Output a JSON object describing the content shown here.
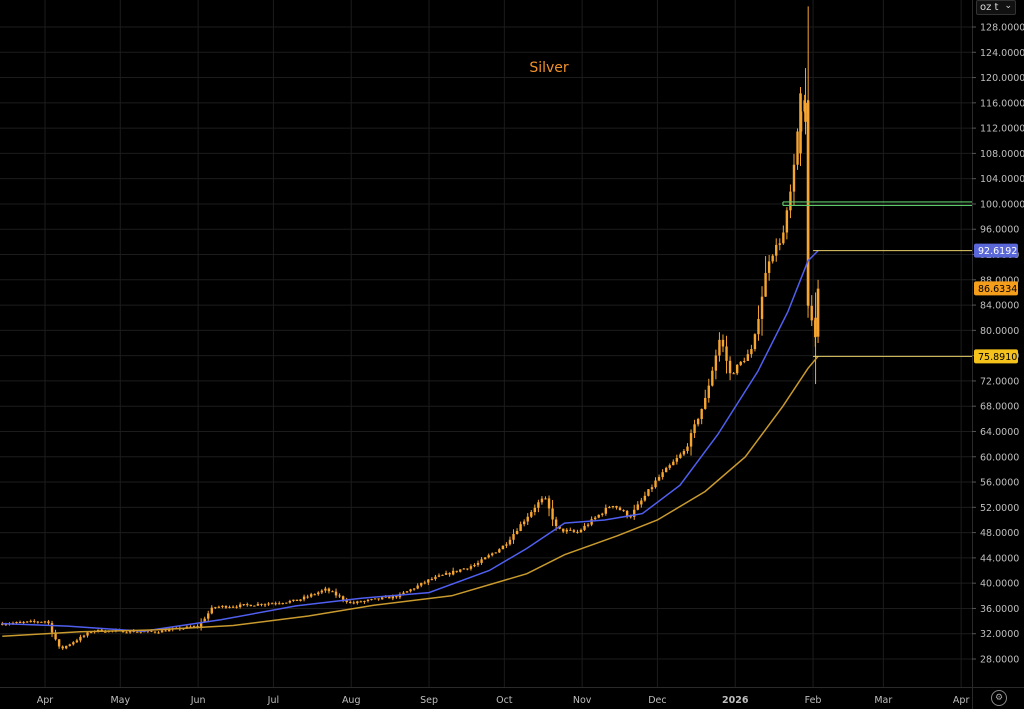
{
  "unit_selector": {
    "label": "oz t",
    "chevron_icon": "chevron-down-icon"
  },
  "settings": {
    "icon": "gear-icon"
  },
  "colors": {
    "background": "#000000",
    "grid": "#1c1c1c",
    "axis_text": "#bfbfbf",
    "candle": "#f7a531",
    "title": "#f0902a",
    "ma_fast": "#4f5ff0",
    "ma_slow": "#c99a2e",
    "line_level_92": "#e8cf6a",
    "line_level_75": "#e8cf6a",
    "line_level_100": "#5ec96a",
    "badge_ma_fast": "#5a67d8",
    "badge_last": "#f59e1b",
    "badge_ma_slow": "#f4c21a"
  },
  "chart_data": {
    "type": "candlestick",
    "title": "Silver",
    "xlabel": "",
    "ylabel": "",
    "ylim": [
      25.0,
      131.0
    ],
    "y_ticks": [
      "28.0000",
      "32.0000",
      "36.0000",
      "40.0000",
      "44.0000",
      "48.0000",
      "52.0000",
      "56.0000",
      "60.0000",
      "64.0000",
      "68.0000",
      "72.0000",
      "76.0000",
      "80.0000",
      "84.0000",
      "88.0000",
      "92.0000",
      "96.0000",
      "100.0000",
      "104.0000",
      "108.0000",
      "112.0000",
      "116.0000",
      "120.0000",
      "124.0000",
      "128.0000"
    ],
    "x_ticks": [
      "Apr",
      "May",
      "Jun",
      "Jul",
      "Aug",
      "Sep",
      "Oct",
      "Nov",
      "Dec",
      "2026",
      "Feb",
      "Mar",
      "Apr"
    ],
    "grid": true,
    "price_path": [
      {
        "date": "2025-03-15",
        "close": 33.6
      },
      {
        "date": "2025-04-02",
        "close": 34.0
      },
      {
        "date": "2025-04-07",
        "close": 29.5
      },
      {
        "date": "2025-04-20",
        "close": 32.5
      },
      {
        "date": "2025-05-15",
        "close": 32.3
      },
      {
        "date": "2025-06-01",
        "close": 33.2
      },
      {
        "date": "2025-06-07",
        "close": 36.2
      },
      {
        "date": "2025-06-20",
        "close": 36.5
      },
      {
        "date": "2025-07-10",
        "close": 37.2
      },
      {
        "date": "2025-07-22",
        "close": 39.0
      },
      {
        "date": "2025-08-01",
        "close": 36.8
      },
      {
        "date": "2025-08-20",
        "close": 38.0
      },
      {
        "date": "2025-09-01",
        "close": 40.5
      },
      {
        "date": "2025-09-20",
        "close": 43.0
      },
      {
        "date": "2025-10-01",
        "close": 46.0
      },
      {
        "date": "2025-10-14",
        "close": 52.5
      },
      {
        "date": "2025-10-17",
        "close": 53.5
      },
      {
        "date": "2025-10-22",
        "close": 48.5
      },
      {
        "date": "2025-10-30",
        "close": 48.0
      },
      {
        "date": "2025-11-13",
        "close": 52.5
      },
      {
        "date": "2025-11-20",
        "close": 50.5
      },
      {
        "date": "2025-12-01",
        "close": 56.5
      },
      {
        "date": "2025-12-12",
        "close": 61.0
      },
      {
        "date": "2025-12-20",
        "close": 69.0
      },
      {
        "date": "2025-12-26",
        "close": 79.0
      },
      {
        "date": "2025-12-30",
        "close": 73.0
      },
      {
        "date": "2026-01-08",
        "close": 77.0
      },
      {
        "date": "2026-01-14",
        "close": 91.0
      },
      {
        "date": "2026-01-20",
        "close": 95.0
      },
      {
        "date": "2026-01-24",
        "close": 104.0
      },
      {
        "date": "2026-01-26",
        "close": 112.0
      },
      {
        "date": "2026-01-28",
        "close": 117.0
      },
      {
        "date": "2026-01-29",
        "close": 115.0
      },
      {
        "date": "2026-01-30",
        "close": 84.0
      },
      {
        "date": "2026-02-02",
        "close": 79.0
      },
      {
        "date": "2026-02-03",
        "close": 86.6
      }
    ],
    "series": [
      {
        "name": "",
        "color": "#4f5ff0",
        "points": [
          {
            "date": "2025-03-15",
            "value": 33.6
          },
          {
            "date": "2025-04-10",
            "value": 33.2
          },
          {
            "date": "2025-05-10",
            "value": 32.4
          },
          {
            "date": "2025-06-10",
            "value": 34.2
          },
          {
            "date": "2025-07-10",
            "value": 36.4
          },
          {
            "date": "2025-08-05",
            "value": 37.6
          },
          {
            "date": "2025-09-01",
            "value": 38.5
          },
          {
            "date": "2025-09-25",
            "value": 42.0
          },
          {
            "date": "2025-10-10",
            "value": 45.5
          },
          {
            "date": "2025-10-25",
            "value": 49.5
          },
          {
            "date": "2025-11-10",
            "value": 50.0
          },
          {
            "date": "2025-11-25",
            "value": 51.0
          },
          {
            "date": "2025-12-10",
            "value": 55.5
          },
          {
            "date": "2025-12-25",
            "value": 63.5
          },
          {
            "date": "2026-01-10",
            "value": 73.5
          },
          {
            "date": "2026-01-22",
            "value": 83.0
          },
          {
            "date": "2026-01-30",
            "value": 91.0
          },
          {
            "date": "2026-02-03",
            "value": 92.6
          }
        ]
      },
      {
        "name": "",
        "color": "#c99a2e",
        "points": [
          {
            "date": "2025-03-15",
            "value": 31.6
          },
          {
            "date": "2025-04-15",
            "value": 32.3
          },
          {
            "date": "2025-05-15",
            "value": 32.6
          },
          {
            "date": "2025-06-15",
            "value": 33.3
          },
          {
            "date": "2025-07-15",
            "value": 34.8
          },
          {
            "date": "2025-08-10",
            "value": 36.5
          },
          {
            "date": "2025-09-10",
            "value": 38.0
          },
          {
            "date": "2025-10-10",
            "value": 41.5
          },
          {
            "date": "2025-10-25",
            "value": 44.5
          },
          {
            "date": "2025-11-15",
            "value": 47.5
          },
          {
            "date": "2025-12-01",
            "value": 50.0
          },
          {
            "date": "2025-12-20",
            "value": 54.5
          },
          {
            "date": "2026-01-05",
            "value": 60.0
          },
          {
            "date": "2026-01-20",
            "value": 68.0
          },
          {
            "date": "2026-01-30",
            "value": 74.0
          },
          {
            "date": "2026-02-03",
            "value": 75.9
          }
        ]
      }
    ],
    "horizontal_lines": [
      {
        "value": 100.0,
        "color": "#5ec96a",
        "style": "double",
        "start_date": "2026-01-20"
      },
      {
        "value": 92.6192,
        "color": "#e8cf6a",
        "start_date": "2026-02-01"
      },
      {
        "value": 75.891,
        "color": "#e8cf6a",
        "start_date": "2026-02-01"
      }
    ],
    "price_labels": [
      {
        "text": "92.6192",
        "value": 92.6192,
        "bg": "#5a67d8",
        "fg": "#ffffff"
      },
      {
        "text": "86.6334",
        "value": 86.6334,
        "bg": "#f59e1b",
        "fg": "#000000"
      },
      {
        "text": "75.8910",
        "value": 75.891,
        "bg": "#f4c21a",
        "fg": "#000000"
      }
    ]
  }
}
